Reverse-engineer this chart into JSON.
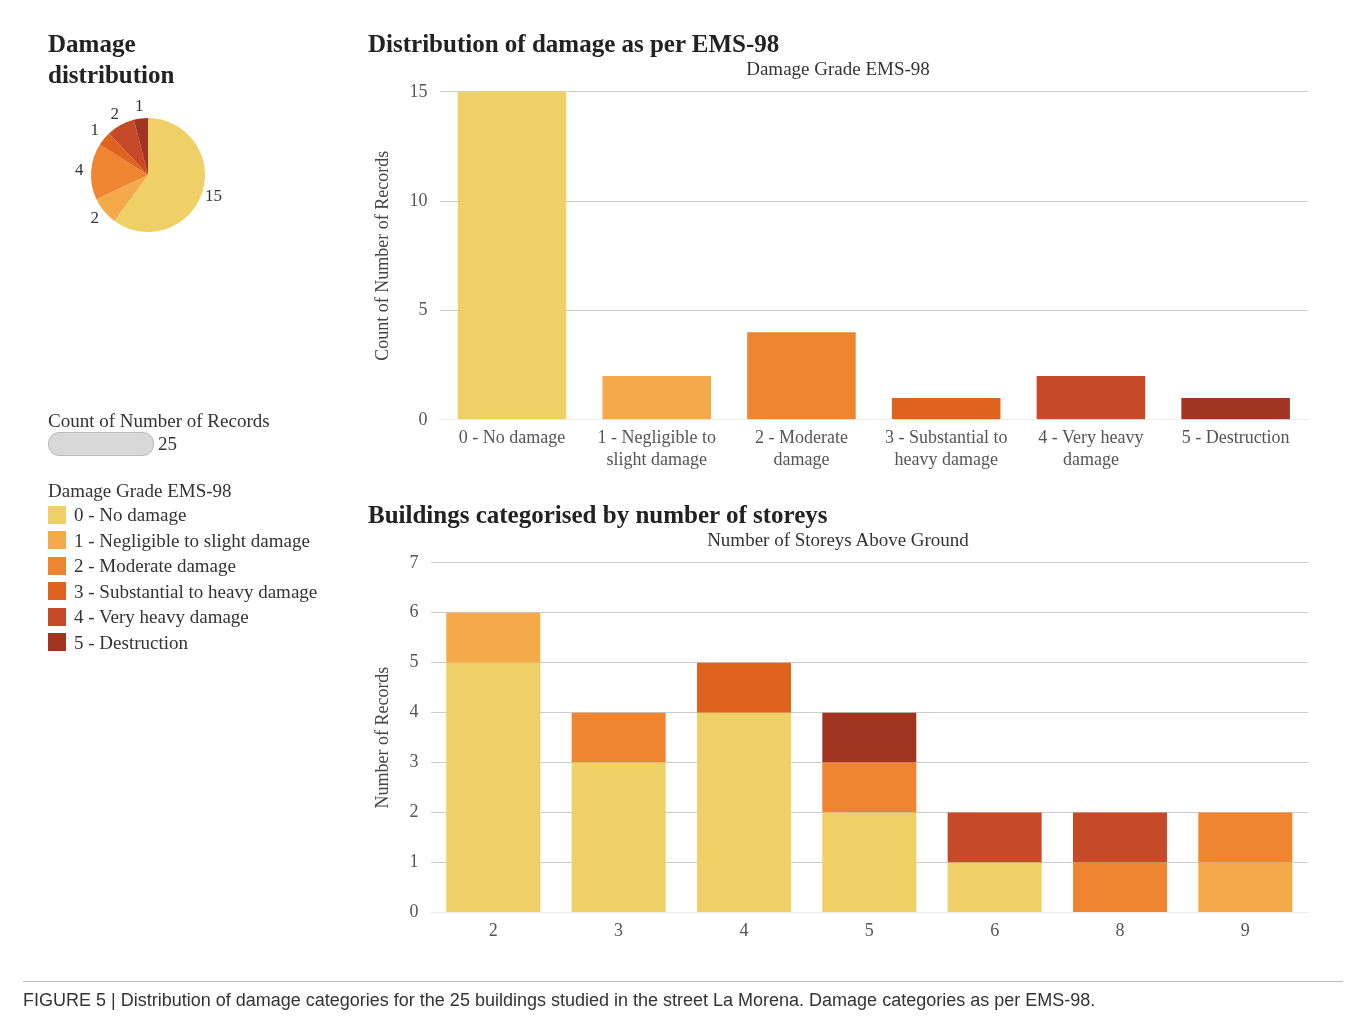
{
  "chart_data": [
    {
      "type": "pie",
      "title": "Damage distribution",
      "categories": [
        "0 - No damage",
        "1 - Negligible to slight damage",
        "2 - Moderate damage",
        "3 - Substantial to heavy damage",
        "4 - Very heavy damage",
        "5 - Destruction"
      ],
      "values": [
        15,
        2,
        4,
        1,
        2,
        1
      ],
      "colors": [
        "#efd066",
        "#f4a94b",
        "#ef8530",
        "#e0621f",
        "#c64a28",
        "#a23522"
      ],
      "data_labels": true,
      "legend": "bottom",
      "legend_title": "Damage Grade EMS-98",
      "annotations": [
        "Count of Number of Records",
        "25"
      ]
    },
    {
      "type": "bar",
      "title": "Distribution of damage as per EMS-98",
      "subtitle": "Damage Grade EMS-98",
      "ylabel": "Count of Number of Records",
      "categories": [
        "0 - No damage",
        "1 - Negligible to slight damage",
        "2 - Moderate damage",
        "3 - Substantial to heavy damage",
        "4 - Very heavy damage",
        "5 - Destruction"
      ],
      "values": [
        15,
        2,
        4,
        1,
        2,
        1
      ],
      "colors": [
        "#efd066",
        "#f4a94b",
        "#ef8530",
        "#e0621f",
        "#c64a28",
        "#a23522"
      ],
      "ylim": [
        0,
        15
      ],
      "yticks": [
        0,
        5,
        10,
        15
      ],
      "grid": "y"
    },
    {
      "type": "bar",
      "stacked": true,
      "title": "Buildings categorised by number of storeys",
      "subtitle": "Number of Storeys Above Ground",
      "ylabel": "Number of Records",
      "categories": [
        "2",
        "3",
        "4",
        "5",
        "6",
        "8",
        "9"
      ],
      "series": [
        {
          "color": "#efd066",
          "values": [
            5,
            3,
            4,
            2,
            1,
            0,
            0
          ]
        },
        {
          "color": "#f4a94b",
          "values": [
            1,
            0,
            0,
            0,
            0,
            0,
            1
          ]
        },
        {
          "color": "#ef8530",
          "values": [
            0,
            1,
            0,
            1,
            0,
            1,
            1
          ]
        },
        {
          "color": "#e0621f",
          "values": [
            0,
            0,
            1,
            0,
            0,
            0,
            0
          ]
        },
        {
          "color": "#c64a28",
          "values": [
            0,
            0,
            0,
            0,
            1,
            1,
            0
          ]
        },
        {
          "color": "#a23522",
          "values": [
            0,
            0,
            0,
            1,
            0,
            0,
            0
          ]
        }
      ],
      "ylim": [
        0,
        7
      ],
      "yticks": [
        0,
        1,
        2,
        3,
        4,
        5,
        6,
        7
      ],
      "grid": "y",
      "annotations": [
        "FIGURE 5 | Distribution of damage categories for the 25 buildings studied in the street La Morena. Damage categories as per EMS-98."
      ]
    }
  ]
}
